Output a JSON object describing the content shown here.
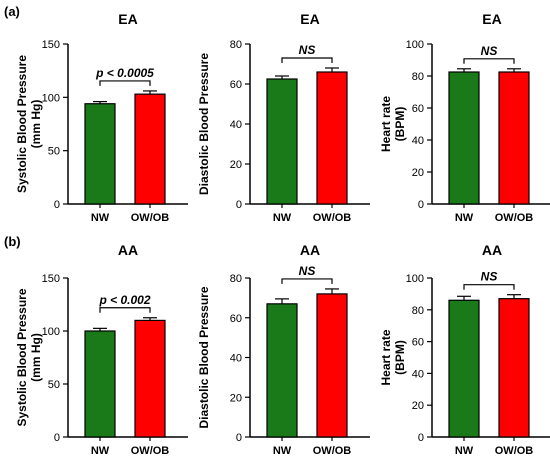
{
  "figure": {
    "row_labels": [
      "(a)",
      "(b)"
    ]
  },
  "colors": {
    "NW": "#1a7a1a",
    "OW/OB": "#ff0000",
    "axis": "#000000"
  },
  "chart_data": [
    {
      "id": "a1",
      "row": 0,
      "col": 0,
      "type": "bar",
      "title": "EA",
      "ylabel": [
        "Systolic  Blood Pressure",
        "(mm Hg)"
      ],
      "categories": [
        "NW",
        "OW/OB"
      ],
      "values": [
        94,
        103
      ],
      "errors": [
        2,
        3
      ],
      "ylim": [
        0,
        150
      ],
      "yticks": [
        0,
        50,
        100,
        150
      ],
      "significance": "p < 0.0005"
    },
    {
      "id": "a2",
      "row": 0,
      "col": 1,
      "type": "bar",
      "title": "EA",
      "ylabel": [
        "Diastolic  Blood Pressure"
      ],
      "categories": [
        "NW",
        "OW/OB"
      ],
      "values": [
        62.5,
        66
      ],
      "errors": [
        1.5,
        2
      ],
      "ylim": [
        0,
        80
      ],
      "yticks": [
        0,
        20,
        40,
        60,
        80
      ],
      "significance": "NS"
    },
    {
      "id": "a3",
      "row": 0,
      "col": 2,
      "type": "bar",
      "title": "EA",
      "ylabel": [
        "Heart rate",
        "(BPM)"
      ],
      "categories": [
        "NW",
        "OW/OB"
      ],
      "values": [
        82.5,
        82.5
      ],
      "errors": [
        2,
        2
      ],
      "ylim": [
        0,
        100
      ],
      "yticks": [
        0,
        20,
        40,
        60,
        80,
        100
      ],
      "significance": "NS"
    },
    {
      "id": "b1",
      "row": 1,
      "col": 0,
      "type": "bar",
      "title": "AA",
      "ylabel": [
        "Systolic  Blood Pressure",
        "(mm Hg)"
      ],
      "categories": [
        "NW",
        "OW/OB"
      ],
      "values": [
        100,
        110
      ],
      "errors": [
        2.5,
        2.5
      ],
      "ylim": [
        0,
        150
      ],
      "yticks": [
        0,
        50,
        100,
        150
      ],
      "significance": "p < 0.002"
    },
    {
      "id": "b2",
      "row": 1,
      "col": 1,
      "type": "bar",
      "title": "AA",
      "ylabel": [
        "Diastolic  Blood Pressure"
      ],
      "categories": [
        "NW",
        "OW/OB"
      ],
      "values": [
        67,
        72
      ],
      "errors": [
        2.5,
        2.5
      ],
      "ylim": [
        0,
        80
      ],
      "yticks": [
        0,
        20,
        40,
        60,
        80
      ],
      "significance": "NS"
    },
    {
      "id": "b3",
      "row": 1,
      "col": 2,
      "type": "bar",
      "title": "AA",
      "ylabel": [
        "Heart rate",
        "(BPM)"
      ],
      "categories": [
        "NW",
        "OW/OB"
      ],
      "values": [
        86,
        87
      ],
      "errors": [
        2.5,
        2.5
      ],
      "ylim": [
        0,
        100
      ],
      "yticks": [
        0,
        20,
        40,
        60,
        80,
        100
      ],
      "significance": "NS"
    }
  ]
}
